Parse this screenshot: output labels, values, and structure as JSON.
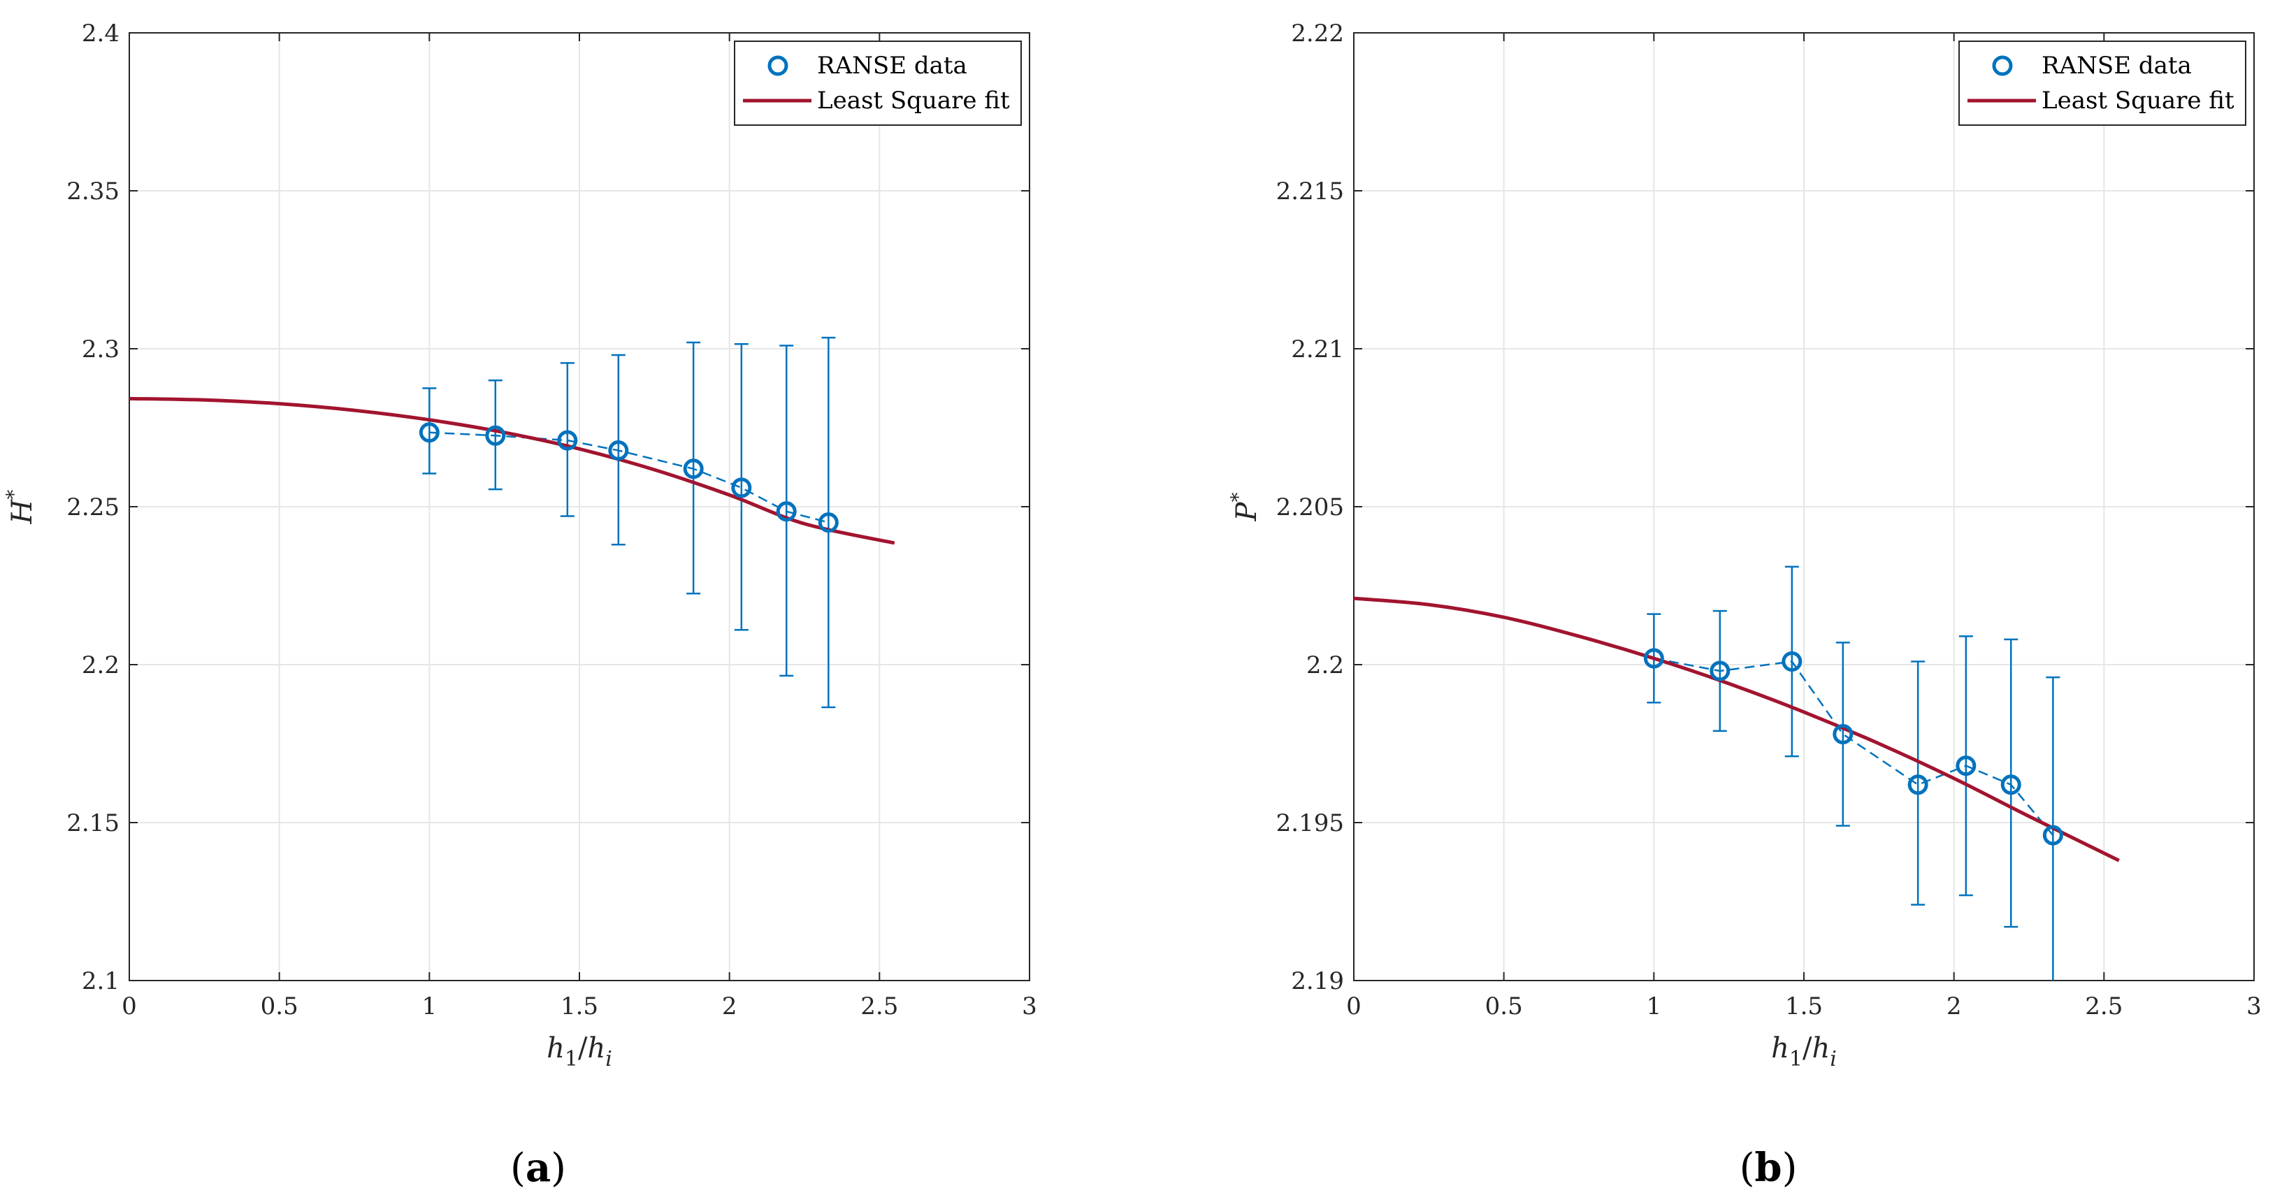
{
  "colors": {
    "data": "#0072BD",
    "fit": "#A2142F",
    "grid": "#e6e6e6",
    "axis": "#262626"
  },
  "chart_data": [
    {
      "type": "scatter",
      "panel_label": "(a)",
      "ylabel_main": "H",
      "ylabel_sup": "*",
      "xlabel": {
        "a": "h",
        "a_sub": "1",
        "slash": "/",
        "b": "h",
        "b_sub": "i"
      },
      "xlim": [
        0,
        3
      ],
      "ylim": [
        2.1,
        2.4
      ],
      "xticks": [
        0,
        0.5,
        1,
        1.5,
        2,
        2.5,
        3
      ],
      "xtick_labels": [
        "0",
        "0.5",
        "1",
        "1.5",
        "2",
        "2.5",
        "3"
      ],
      "yticks": [
        2.1,
        2.15,
        2.2,
        2.25,
        2.3,
        2.35,
        2.4
      ],
      "ytick_labels": [
        "2.1",
        "2.15",
        "2.2",
        "2.25",
        "2.3",
        "2.35",
        "2.4"
      ],
      "grid": true,
      "legend": {
        "position": "top-right",
        "entries": [
          "RANSE data",
          "Least Square fit"
        ]
      },
      "series": [
        {
          "name": "RANSE data",
          "style": "markers-dashed-errorbars",
          "x": [
            1.0,
            1.22,
            1.46,
            1.63,
            1.88,
            2.04,
            2.19,
            2.33
          ],
          "y": [
            2.2735,
            2.2725,
            2.271,
            2.2678,
            2.262,
            2.256,
            2.2485,
            2.245
          ],
          "err_low": [
            2.2605,
            2.2555,
            2.247,
            2.238,
            2.2225,
            2.211,
            2.1965,
            2.1865
          ],
          "err_high": [
            2.2875,
            2.29,
            2.2955,
            2.298,
            2.302,
            2.3015,
            2.301,
            2.3035
          ]
        },
        {
          "name": "Least Square fit",
          "style": "line",
          "x": [
            0,
            0.25,
            0.5,
            0.75,
            1.0,
            1.25,
            1.5,
            1.75,
            2.0,
            2.25,
            2.55
          ],
          "y": [
            2.2842,
            2.2838,
            2.2826,
            2.2805,
            2.2775,
            2.2735,
            2.2683,
            2.2617,
            2.2537,
            2.2446,
            2.2385
          ]
        }
      ]
    },
    {
      "type": "scatter",
      "panel_label": "(b)",
      "ylabel_main": "P",
      "ylabel_sup": "*",
      "xlabel": {
        "a": "h",
        "a_sub": "1",
        "slash": "/",
        "b": "h",
        "b_sub": "i"
      },
      "xlim": [
        0,
        3
      ],
      "ylim": [
        2.19,
        2.22
      ],
      "xticks": [
        0,
        0.5,
        1,
        1.5,
        2,
        2.5,
        3
      ],
      "xtick_labels": [
        "0",
        "0.5",
        "1",
        "1.5",
        "2",
        "2.5",
        "3"
      ],
      "yticks": [
        2.19,
        2.195,
        2.2,
        2.205,
        2.21,
        2.215,
        2.22
      ],
      "ytick_labels": [
        "2.19",
        "2.195",
        "2.2",
        "2.205",
        "2.21",
        "2.215",
        "2.22"
      ],
      "grid": true,
      "legend": {
        "position": "top-right",
        "entries": [
          "RANSE data",
          "Least Square fit"
        ]
      },
      "series": [
        {
          "name": "RANSE data",
          "style": "markers-dashed-errorbars",
          "x": [
            1.0,
            1.22,
            1.46,
            1.63,
            1.88,
            2.04,
            2.19,
            2.33
          ],
          "y": [
            2.2002,
            2.1998,
            2.2001,
            2.1978,
            2.1962,
            2.1968,
            2.1962,
            2.1946
          ],
          "err_low": [
            2.1988,
            2.1979,
            2.1971,
            2.1949,
            2.1924,
            2.1927,
            2.1917,
            2.1895
          ],
          "err_high": [
            2.2016,
            2.2017,
            2.2031,
            2.2007,
            2.2001,
            2.2009,
            2.2008,
            2.1996
          ]
        },
        {
          "name": "Least Square fit",
          "style": "line",
          "x": [
            0,
            0.25,
            0.5,
            0.75,
            1.0,
            1.25,
            1.5,
            1.75,
            2.0,
            2.25,
            2.55
          ],
          "y": [
            2.2021,
            2.2019,
            2.2015,
            2.2009,
            2.2002,
            2.1994,
            2.1985,
            2.1975,
            2.1964,
            2.1952,
            2.1938
          ]
        }
      ]
    }
  ]
}
